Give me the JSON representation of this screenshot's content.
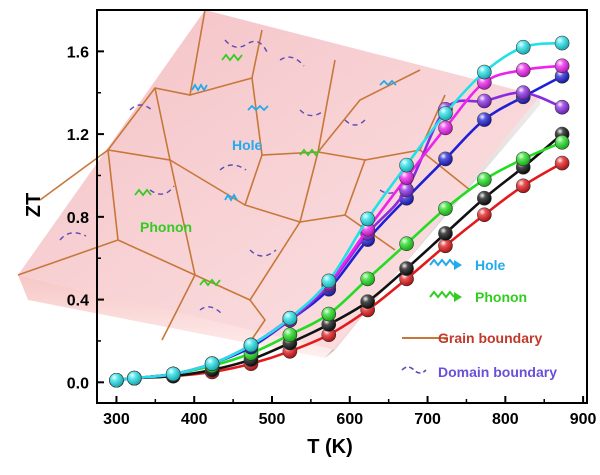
{
  "chart_data": {
    "type": "line",
    "title": "",
    "xlabel": "T (K)",
    "ylabel": "ZT",
    "xlim": [
      275,
      905
    ],
    "ylim": [
      -0.1,
      1.8
    ],
    "x_ticks": [
      300,
      400,
      500,
      600,
      700,
      800,
      900
    ],
    "y_ticks": [
      0.0,
      0.4,
      0.8,
      1.2,
      1.6
    ],
    "x_tick_labels": [
      "300",
      "400",
      "500",
      "600",
      "700",
      "800",
      "900"
    ],
    "y_tick_labels": [
      "0.0",
      "0.4",
      "0.8",
      "1.2",
      "1.6"
    ],
    "grid": false,
    "series": [
      {
        "color": "#e31a1c",
        "x": [
          300,
          323,
          373,
          423,
          473,
          523,
          573,
          623,
          673,
          723,
          773,
          823,
          873
        ],
        "y": [
          0.01,
          0.02,
          0.03,
          0.05,
          0.09,
          0.15,
          0.23,
          0.35,
          0.5,
          0.66,
          0.81,
          0.95,
          1.06
        ]
      },
      {
        "color": "#111111",
        "x": [
          300,
          323,
          373,
          423,
          473,
          523,
          573,
          623,
          673,
          723,
          773,
          823,
          873
        ],
        "y": [
          0.01,
          0.02,
          0.03,
          0.06,
          0.11,
          0.19,
          0.28,
          0.39,
          0.55,
          0.72,
          0.89,
          1.04,
          1.2
        ]
      },
      {
        "color": "#22dd22",
        "x": [
          300,
          323,
          373,
          423,
          473,
          523,
          573,
          623,
          673,
          723,
          773,
          823,
          873
        ],
        "y": [
          0.01,
          0.02,
          0.04,
          0.08,
          0.14,
          0.23,
          0.33,
          0.5,
          0.67,
          0.84,
          0.98,
          1.08,
          1.16
        ]
      },
      {
        "color": "#1f1fd6",
        "x": [
          300,
          323,
          373,
          423,
          473,
          523,
          573,
          623,
          673,
          723,
          773,
          823,
          873
        ],
        "y": [
          0.01,
          0.02,
          0.04,
          0.09,
          0.17,
          0.3,
          0.45,
          0.69,
          0.89,
          1.08,
          1.27,
          1.38,
          1.48
        ]
      },
      {
        "color": "#8a2be2",
        "x": [
          300,
          323,
          373,
          423,
          473,
          523,
          573,
          623,
          673,
          723,
          773,
          823,
          873
        ],
        "y": [
          0.01,
          0.02,
          0.04,
          0.09,
          0.18,
          0.3,
          0.47,
          0.72,
          0.93,
          1.32,
          1.36,
          1.4,
          1.33
        ]
      },
      {
        "color": "#ee22ee",
        "x": [
          300,
          323,
          373,
          423,
          473,
          523,
          573,
          623,
          673,
          723,
          773,
          823,
          873
        ],
        "y": [
          0.01,
          0.02,
          0.04,
          0.09,
          0.18,
          0.31,
          0.48,
          0.74,
          0.99,
          1.23,
          1.45,
          1.51,
          1.53
        ]
      },
      {
        "color": "#22e0e8",
        "x": [
          300,
          323,
          373,
          423,
          473,
          523,
          573,
          623,
          673,
          723,
          773,
          823,
          873
        ],
        "y": [
          0.01,
          0.02,
          0.04,
          0.09,
          0.18,
          0.31,
          0.49,
          0.79,
          1.05,
          1.3,
          1.5,
          1.62,
          1.64
        ]
      }
    ],
    "inset": {
      "labels": {
        "hole": "Hole",
        "phonon": "Phonon"
      },
      "legend": [
        {
          "label": "Hole",
          "kind": "hole-wave",
          "color": "#22aaee"
        },
        {
          "label": "Phonon",
          "kind": "phonon-wave",
          "color": "#33cc22"
        },
        {
          "label": "Grain boundary",
          "kind": "solid-line",
          "color": "#c8773a",
          "text_color": "#c0392b"
        },
        {
          "label": "Domain boundary",
          "kind": "dashed-line",
          "color": "#5b4bb7",
          "text_color": "#6a4fd8"
        }
      ]
    }
  }
}
